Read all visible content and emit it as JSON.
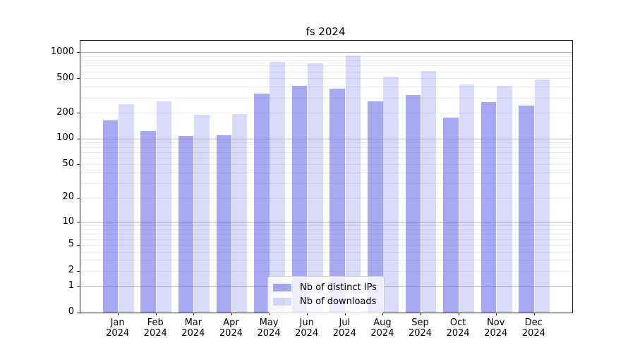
{
  "title": "fs 2024",
  "chart_data": {
    "type": "bar",
    "title": "fs 2024",
    "categories": [
      "Jan 2024",
      "Feb 2024",
      "Mar 2024",
      "Apr 2024",
      "May 2024",
      "Jun 2024",
      "Jul 2024",
      "Aug 2024",
      "Sep 2024",
      "Oct 2024",
      "Nov 2024",
      "Dec 2024"
    ],
    "series": [
      {
        "name": "Nb of distinct IPs",
        "color": "rgba(80,80,230,0.5)",
        "values": [
          165,
          125,
          109,
          110,
          335,
          417,
          385,
          272,
          323,
          179,
          267,
          245
        ]
      },
      {
        "name": "Nb of downloads",
        "color": "rgba(80,80,230,0.22)",
        "values": [
          256,
          271,
          191,
          196,
          785,
          758,
          930,
          525,
          614,
          428,
          416,
          487
        ]
      }
    ],
    "xlabel": "",
    "ylabel": "",
    "yscale": "log10(value+1)",
    "ylim": [
      0,
      1372
    ],
    "y_ticks": [
      0,
      1,
      2,
      5,
      10,
      20,
      50,
      100,
      200,
      500,
      1000
    ],
    "y_major_grid_values": [
      1,
      10,
      100,
      1000
    ],
    "grid": true,
    "legend_position": "lower center"
  },
  "colors": {
    "major_grid": "#b4b4b4",
    "minor_grid": "#ebebeb",
    "spine": "#262626",
    "text": "#000000",
    "legend_border": "#cccccc",
    "legend_bg": "rgba(255,255,255,0.8)"
  }
}
